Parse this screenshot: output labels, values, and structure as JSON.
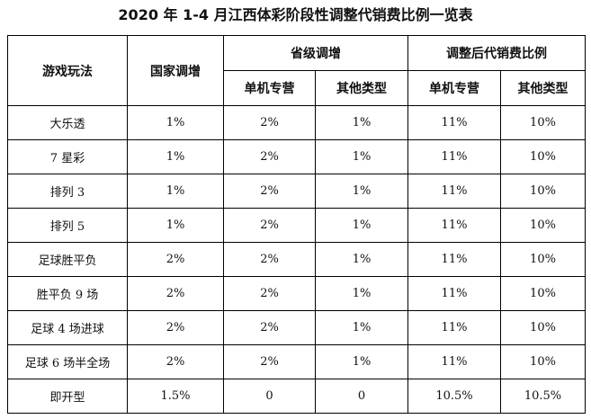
{
  "title": "2020 年 1-4 月江西体彩阶段性调整代销费比例一览表",
  "headers": {
    "game": "游戏玩法",
    "national": "国家调增",
    "provincial": "省级调增",
    "adjusted": "调整后代销费比例",
    "single": "单机专营",
    "other": "其他类型"
  },
  "rows": [
    [
      "大乐透",
      "1%",
      "2%",
      "1%",
      "11%",
      "10%"
    ],
    [
      "7 星彩",
      "1%",
      "2%",
      "1%",
      "11%",
      "10%"
    ],
    [
      "排列 3",
      "1%",
      "2%",
      "1%",
      "11%",
      "10%"
    ],
    [
      "排列 5",
      "1%",
      "2%",
      "1%",
      "11%",
      "10%"
    ],
    [
      "足球胜平负",
      "2%",
      "2%",
      "1%",
      "11%",
      "10%"
    ],
    [
      "胜平负 9 场",
      "2%",
      "2%",
      "1%",
      "11%",
      "10%"
    ],
    [
      "足球 4 场进球",
      "2%",
      "2%",
      "1%",
      "11%",
      "10%"
    ],
    [
      "足球 6 场半全场",
      "2%",
      "2%",
      "1%",
      "11%",
      "10%"
    ],
    [
      "即开型",
      "1.5%",
      "0",
      "0",
      "10.5%",
      "10.5%"
    ]
  ]
}
